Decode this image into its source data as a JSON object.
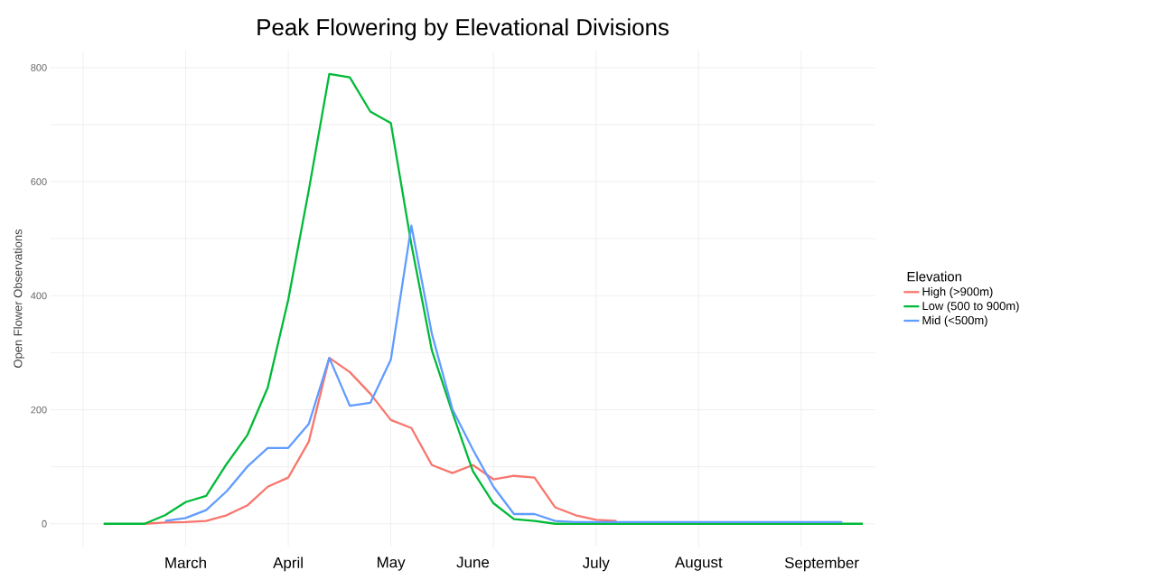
{
  "chart_data": {
    "type": "line",
    "title": "Peak Flowering by Elevational Divisions",
    "ylabel": "Open Flower Observations",
    "legend_title": "Elevation",
    "categories": [
      null,
      null,
      null,
      null,
      "March",
      null,
      null,
      null,
      null,
      "April",
      null,
      null,
      null,
      null,
      "May",
      null,
      null,
      null,
      "June",
      null,
      null,
      null,
      null,
      null,
      "July",
      null,
      null,
      null,
      null,
      "August",
      null,
      null,
      null,
      null,
      null,
      "September",
      null,
      null
    ],
    "series": [
      {
        "name": "High (>900m)",
        "color": "#f8766d",
        "values": [
          null,
          null,
          0,
          2,
          3,
          5,
          15,
          32,
          65,
          81,
          144,
          291,
          266,
          228,
          182,
          168,
          103,
          89,
          103,
          78,
          84,
          81,
          29,
          15,
          7,
          5,
          null,
          null,
          null,
          null,
          null,
          null,
          null,
          null,
          null,
          null,
          null,
          null
        ]
      },
      {
        "name": "Low (500 to 900m)",
        "color": "#00ba38",
        "values": [
          0,
          0,
          0,
          15,
          38,
          49,
          105,
          155,
          239,
          393,
          585,
          789,
          783,
          723,
          703,
          490,
          304,
          195,
          92,
          36,
          8,
          5,
          0,
          0,
          0,
          0,
          0,
          0,
          0,
          0,
          0,
          0,
          0,
          0,
          0,
          0,
          0,
          0
        ]
      },
      {
        "name": "Mid (<500m)",
        "color": "#619cff",
        "values": [
          null,
          null,
          null,
          5,
          10,
          24,
          57,
          100,
          133,
          133,
          175,
          291,
          207,
          212,
          288,
          523,
          333,
          201,
          130,
          65,
          17,
          17,
          5,
          3,
          3,
          3,
          3,
          3,
          3,
          3,
          3,
          3,
          3,
          3,
          3,
          3,
          3,
          null
        ]
      }
    ],
    "ylim": [
      -40,
      830
    ],
    "yticks": [
      0,
      {
        "value": 100,
        "label": null
      },
      200,
      {
        "value": 300,
        "label": null
      },
      400,
      {
        "value": 500,
        "label": null
      },
      600,
      {
        "value": 700,
        "label": null
      },
      800
    ],
    "grid": true,
    "legend": "right",
    "marker": "none",
    "line_style": "solid"
  }
}
